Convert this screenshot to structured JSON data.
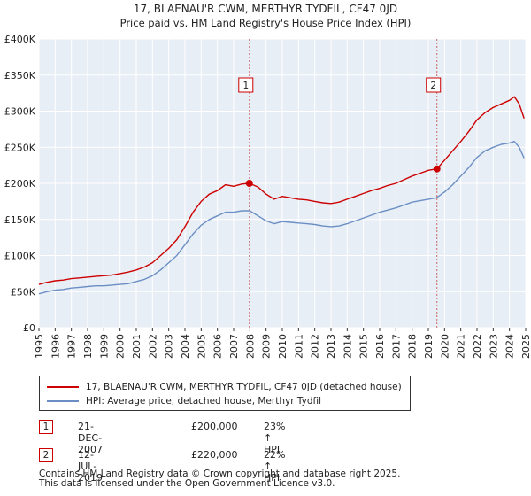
{
  "chart_data": {
    "type": "line",
    "title": "17, BLAENAU'R CWM, MERTHYR TYDFIL, CF47 0JD",
    "subtitle": "Price paid vs. HM Land Registry's House Price Index (HPI)",
    "xlim": [
      1995,
      2025
    ],
    "ylim": [
      0,
      400000
    ],
    "yticks": [
      0,
      50000,
      100000,
      150000,
      200000,
      250000,
      300000,
      350000,
      400000
    ],
    "ytick_labels": [
      "£0",
      "£50K",
      "£100K",
      "£150K",
      "£200K",
      "£250K",
      "£300K",
      "£350K",
      "£400K"
    ],
    "xticks": [
      1995,
      1996,
      1997,
      1998,
      1999,
      2000,
      2001,
      2002,
      2003,
      2004,
      2005,
      2006,
      2007,
      2008,
      2009,
      2010,
      2011,
      2012,
      2013,
      2014,
      2015,
      2016,
      2017,
      2018,
      2019,
      2020,
      2021,
      2022,
      2023,
      2024,
      2025
    ],
    "xtick_labels": [
      "1995",
      "1996",
      "1997",
      "1998",
      "1999",
      "2000",
      "2001",
      "2002",
      "2003",
      "2004",
      "2005",
      "2006",
      "2007",
      "2008",
      "2009",
      "2010",
      "2011",
      "2012",
      "2013",
      "2014",
      "2015",
      "2016",
      "2017",
      "2018",
      "2019",
      "2020",
      "2021",
      "2022",
      "2023",
      "2024",
      "2025"
    ],
    "grid": true,
    "series": [
      {
        "name": "17, BLAENAU'R CWM, MERTHYR TYDFIL, CF47 0JD (detached house)",
        "color": "#cc0000",
        "x": [
          1995.0,
          1995.5,
          1996.0,
          1996.5,
          1997.0,
          1997.5,
          1998.0,
          1998.5,
          1999.0,
          1999.5,
          2000.0,
          2000.5,
          2001.0,
          2001.5,
          2002.0,
          2002.5,
          2003.0,
          2003.5,
          2004.0,
          2004.5,
          2005.0,
          2005.5,
          2006.0,
          2006.5,
          2007.0,
          2007.5,
          2007.97,
          2008.5,
          2009.0,
          2009.5,
          2010.0,
          2010.5,
          2011.0,
          2011.5,
          2012.0,
          2012.5,
          2013.0,
          2013.5,
          2014.0,
          2014.5,
          2015.0,
          2015.5,
          2016.0,
          2016.5,
          2017.0,
          2017.5,
          2018.0,
          2018.5,
          2019.0,
          2019.53,
          2020.0,
          2020.5,
          2021.0,
          2021.5,
          2022.0,
          2022.5,
          2023.0,
          2023.5,
          2024.0,
          2024.3,
          2024.6,
          2024.9
        ],
        "y": [
          60000,
          63000,
          65000,
          66000,
          68000,
          69000,
          70000,
          71000,
          72000,
          73000,
          75000,
          77000,
          80000,
          84000,
          90000,
          100000,
          110000,
          122000,
          140000,
          160000,
          175000,
          185000,
          190000,
          198000,
          196000,
          199000,
          200000,
          195000,
          185000,
          178000,
          182000,
          180000,
          178000,
          177000,
          175000,
          173000,
          172000,
          174000,
          178000,
          182000,
          186000,
          190000,
          193000,
          197000,
          200000,
          205000,
          210000,
          214000,
          218000,
          220000,
          232000,
          245000,
          258000,
          272000,
          288000,
          298000,
          305000,
          310000,
          315000,
          320000,
          310000,
          290000
        ]
      },
      {
        "name": "HPI: Average price, detached house, Merthyr Tydfil",
        "color": "#6b8fc4",
        "x": [
          1995.0,
          1995.5,
          1996.0,
          1996.5,
          1997.0,
          1997.5,
          1998.0,
          1998.5,
          1999.0,
          1999.5,
          2000.0,
          2000.5,
          2001.0,
          2001.5,
          2002.0,
          2002.5,
          2003.0,
          2003.5,
          2004.0,
          2004.5,
          2005.0,
          2005.5,
          2006.0,
          2006.5,
          2007.0,
          2007.5,
          2008.0,
          2008.5,
          2009.0,
          2009.5,
          2010.0,
          2010.5,
          2011.0,
          2011.5,
          2012.0,
          2012.5,
          2013.0,
          2013.5,
          2014.0,
          2014.5,
          2015.0,
          2015.5,
          2016.0,
          2016.5,
          2017.0,
          2017.5,
          2018.0,
          2018.5,
          2019.0,
          2019.5,
          2020.0,
          2020.5,
          2021.0,
          2021.5,
          2022.0,
          2022.5,
          2023.0,
          2023.5,
          2024.0,
          2024.3,
          2024.6,
          2024.9
        ],
        "y": [
          47000,
          50000,
          52000,
          53000,
          55000,
          56000,
          57000,
          58000,
          58000,
          59000,
          60000,
          61000,
          64000,
          67000,
          72000,
          80000,
          90000,
          100000,
          115000,
          130000,
          142000,
          150000,
          155000,
          160000,
          160000,
          162000,
          162000,
          155000,
          148000,
          144000,
          147000,
          146000,
          145000,
          144000,
          143000,
          141000,
          140000,
          141000,
          144000,
          148000,
          152000,
          156000,
          160000,
          163000,
          166000,
          170000,
          174000,
          176000,
          178000,
          180000,
          188000,
          198000,
          210000,
          222000,
          236000,
          245000,
          250000,
          254000,
          256000,
          258000,
          250000,
          235000
        ]
      }
    ],
    "sales": [
      {
        "marker": "1",
        "date": "21-DEC-2007",
        "x": 2007.97,
        "y": 200000,
        "price": "£200,000",
        "hpi_change": "23% ↑ HPI"
      },
      {
        "marker": "2",
        "date": "12-JUL-2019",
        "x": 2019.53,
        "y": 220000,
        "price": "£220,000",
        "hpi_change": "22% ↑ HPI"
      }
    ]
  },
  "footer": {
    "line1": "Contains HM Land Registry data © Crown copyright and database right 2025.",
    "line2": "This data is licensed under the Open Government Licence v3.0."
  }
}
